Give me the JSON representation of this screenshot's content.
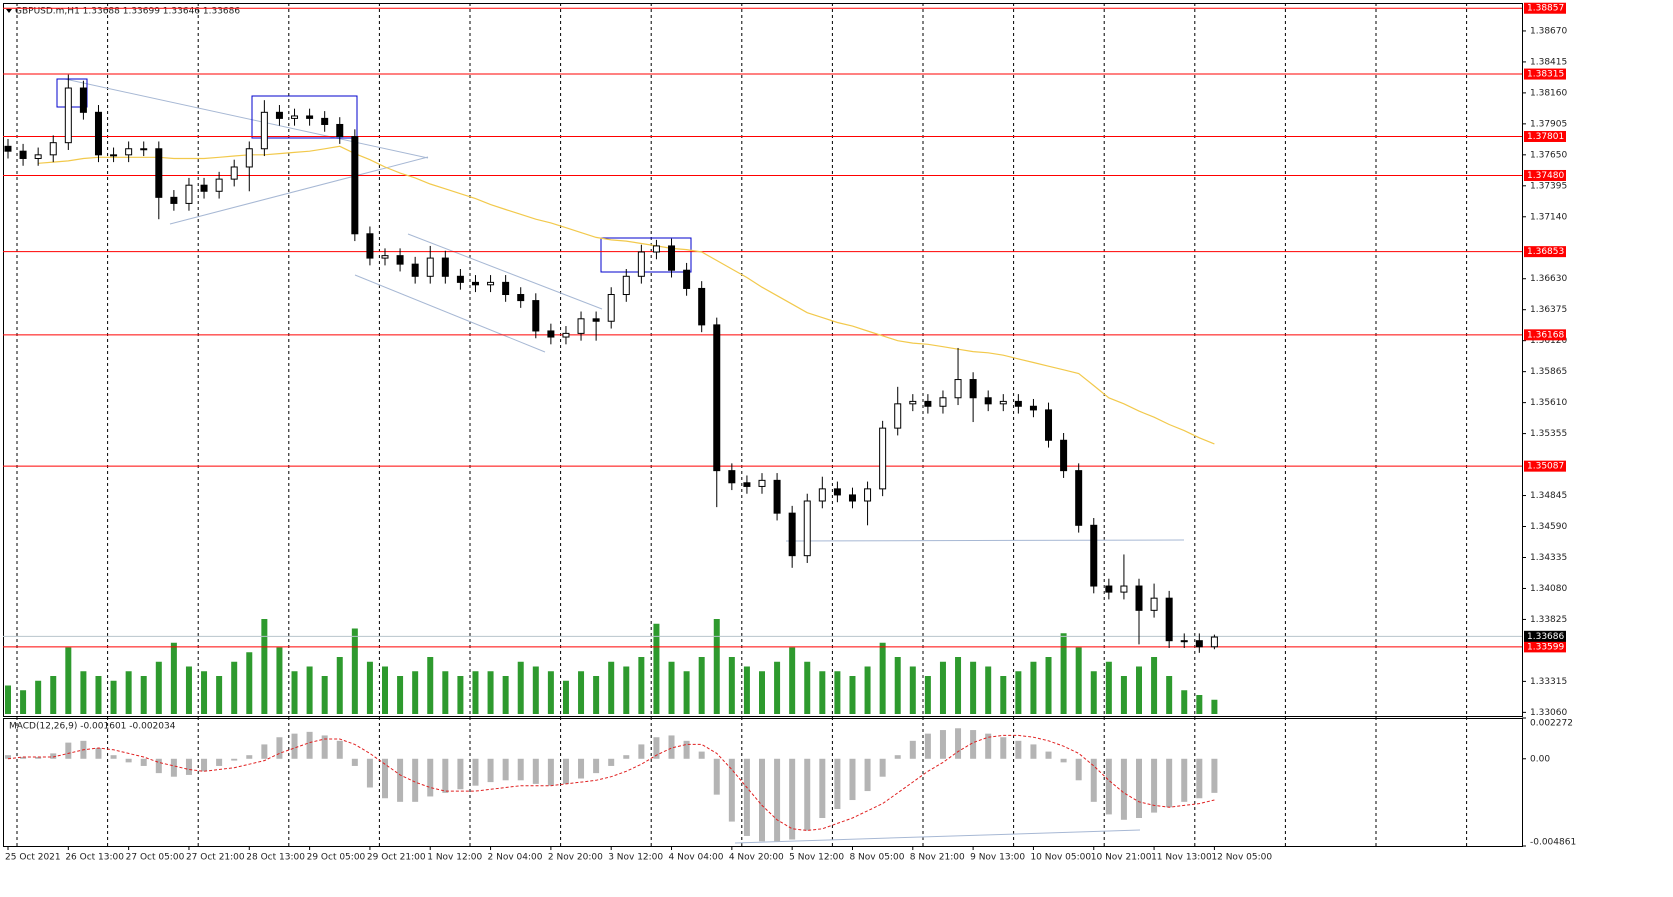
{
  "chart_data": {
    "type": "candlestick",
    "title": "GBPUSD.m,H1  1.33688 1.33699 1.33646 1.33686",
    "categories": [
      "25 Oct 2021",
      null,
      null,
      null,
      "26 Oct 13:00",
      null,
      null,
      null,
      "27 Oct 05:00",
      null,
      null,
      null,
      "27 Oct 21:00",
      null,
      null,
      null,
      "28 Oct 13:00",
      null,
      null,
      null,
      "29 Oct 05:00",
      null,
      null,
      null,
      "29 Oct 21:00",
      null,
      null,
      null,
      "1 Nov 12:00",
      null,
      null,
      null,
      "2 Nov 04:00",
      null,
      null,
      null,
      "2 Nov 20:00",
      null,
      null,
      null,
      "3 Nov 12:00",
      null,
      null,
      null,
      "4 Nov 04:00",
      null,
      null,
      null,
      "4 Nov 20:00",
      null,
      null,
      null,
      "5 Nov 12:00",
      null,
      null,
      null,
      "8 Nov 05:00",
      null,
      null,
      null,
      "8 Nov 21:00",
      null,
      null,
      null,
      "9 Nov 13:00",
      null,
      null,
      null,
      "10 Nov 05:00",
      null,
      null,
      null,
      "10 Nov 21:00",
      null,
      null,
      null,
      "11 Nov 13:00",
      null,
      null,
      null,
      "12 Nov 05:00"
    ],
    "color": "#000000",
    "open": [
      1.3772,
      1.3768,
      1.3762,
      1.3765,
      1.3775,
      1.382,
      1.38,
      1.3765,
      1.3765,
      1.377,
      1.377,
      1.373,
      1.3725,
      1.374,
      1.3735,
      1.3745,
      1.3755,
      1.377,
      1.38,
      1.3795,
      1.3797,
      1.3795,
      1.379,
      1.378,
      1.37,
      1.368,
      1.3682,
      1.3675,
      1.3665,
      1.368,
      1.3665,
      1.366,
      1.3658,
      1.366,
      1.365,
      1.3645,
      1.362,
      1.3615,
      1.3618,
      1.363,
      1.3628,
      1.365,
      1.3665,
      1.3685,
      1.369,
      1.367,
      1.3655,
      1.3625,
      1.3505,
      1.3495,
      1.3492,
      1.3497,
      1.347,
      1.3435,
      1.348,
      1.349,
      1.3485,
      1.348,
      1.349,
      1.354,
      1.356,
      1.3562,
      1.3558,
      1.3565,
      1.358,
      1.3565,
      1.356,
      1.3562,
      1.3558,
      1.3555,
      1.353,
      1.3505,
      1.346,
      1.341,
      1.3405,
      1.341,
      1.339,
      1.34,
      1.3365,
      1.3365,
      1.336
    ],
    "high": [
      1.3778,
      1.3774,
      1.3771,
      1.3781,
      1.3831,
      1.3826,
      1.3806,
      1.3771,
      1.3776,
      1.3776,
      1.3776,
      1.3736,
      1.3746,
      1.3746,
      1.3751,
      1.3761,
      1.3776,
      1.381,
      1.3806,
      1.3803,
      1.3803,
      1.3801,
      1.3796,
      1.3786,
      1.3706,
      1.3688,
      1.3688,
      1.3681,
      1.369,
      1.3686,
      1.3671,
      1.3666,
      1.3666,
      1.3666,
      1.3656,
      1.3651,
      1.3626,
      1.3624,
      1.3636,
      1.3636,
      1.3656,
      1.3671,
      1.3691,
      1.3695,
      1.3696,
      1.3676,
      1.3661,
      1.3631,
      1.3511,
      1.3501,
      1.3503,
      1.3503,
      1.3476,
      1.3486,
      1.35,
      1.3496,
      1.3491,
      1.3496,
      1.3546,
      1.3574,
      1.3568,
      1.3568,
      1.3571,
      1.3606,
      1.3586,
      1.3571,
      1.3568,
      1.3568,
      1.3564,
      1.3561,
      1.3536,
      1.3511,
      1.3466,
      1.3416,
      1.3436,
      1.3416,
      1.3412,
      1.3406,
      1.3371,
      1.3371,
      1.337
    ],
    "low": [
      1.3762,
      1.3756,
      1.3756,
      1.3759,
      1.3769,
      1.3794,
      1.3759,
      1.3759,
      1.3759,
      1.3764,
      1.3712,
      1.3719,
      1.3719,
      1.3729,
      1.3729,
      1.3739,
      1.3735,
      1.3764,
      1.3789,
      1.3789,
      1.3789,
      1.3784,
      1.3774,
      1.3694,
      1.3674,
      1.3674,
      1.3669,
      1.3659,
      1.3659,
      1.3659,
      1.3654,
      1.3652,
      1.3652,
      1.3644,
      1.3639,
      1.3614,
      1.3609,
      1.3609,
      1.3612,
      1.3612,
      1.3622,
      1.3644,
      1.3659,
      1.3679,
      1.3664,
      1.3649,
      1.3619,
      1.3475,
      1.3489,
      1.3486,
      1.3486,
      1.3464,
      1.3425,
      1.3429,
      1.3474,
      1.3479,
      1.3474,
      1.346,
      1.3484,
      1.3534,
      1.3554,
      1.3552,
      1.3552,
      1.3559,
      1.3545,
      1.3554,
      1.3554,
      1.3552,
      1.3549,
      1.3524,
      1.3499,
      1.3454,
      1.3404,
      1.3399,
      1.3399,
      1.3362,
      1.3384,
      1.3359,
      1.3359,
      1.3355,
      1.3358
    ],
    "close": [
      1.3768,
      1.3762,
      1.3765,
      1.3775,
      1.382,
      1.38,
      1.3765,
      1.3765,
      1.377,
      1.377,
      1.373,
      1.3725,
      1.374,
      1.3735,
      1.3745,
      1.3755,
      1.377,
      1.38,
      1.3795,
      1.3797,
      1.3795,
      1.379,
      1.378,
      1.37,
      1.368,
      1.3682,
      1.3675,
      1.3665,
      1.368,
      1.3665,
      1.366,
      1.3658,
      1.366,
      1.365,
      1.3645,
      1.362,
      1.3615,
      1.3618,
      1.363,
      1.3628,
      1.365,
      1.3665,
      1.3685,
      1.369,
      1.367,
      1.3655,
      1.3625,
      1.3505,
      1.3495,
      1.3492,
      1.3497,
      1.347,
      1.3435,
      1.348,
      1.349,
      1.3485,
      1.348,
      1.349,
      1.354,
      1.356,
      1.3562,
      1.3558,
      1.3565,
      1.358,
      1.3565,
      1.356,
      1.3562,
      1.3558,
      1.3555,
      1.353,
      1.3505,
      1.346,
      1.341,
      1.3405,
      1.341,
      1.339,
      1.34,
      1.3365,
      1.3365,
      1.336,
      1.3368
    ],
    "ylim": [
      1.3303,
      1.389
    ],
    "yticks": [
      {
        "value": 1.3867,
        "label": "1.38670"
      },
      1.38415,
      {
        "value": 1.3816,
        "label": "1.38160"
      },
      1.37905,
      {
        "value": 1.3765,
        "label": "1.37650"
      },
      1.37395,
      {
        "value": 1.3714,
        "label": "1.37140"
      },
      {
        "value": 1.3663,
        "label": "1.36630"
      },
      1.36375,
      {
        "value": 1.3612,
        "label": "1.36120"
      },
      1.35865,
      {
        "value": 1.3561,
        "label": "1.35610"
      },
      1.35355,
      1.34845,
      {
        "value": 1.3459,
        "label": "1.34590"
      },
      1.34335,
      {
        "value": 1.3408,
        "label": "1.34080"
      },
      1.33825,
      1.33315,
      {
        "value": 1.3306,
        "label": "1.33060"
      }
    ],
    "levels": [
      1.38857,
      1.38315,
      1.37801,
      {
        "value": 1.3748,
        "label": "1.37480"
      },
      1.36853,
      1.36168,
      1.35087,
      1.33599
    ],
    "level_color": "#ff0000",
    "current_price": 1.33686,
    "ma": {
      "color": "#f2c94c",
      "values": [
        null,
        null,
        1.3758,
        1.3759,
        1.376,
        1.3762,
        1.3763,
        1.3763,
        1.3763,
        1.3763,
        1.3763,
        1.3762,
        1.3762,
        1.3762,
        1.3763,
        1.3764,
        1.3765,
        1.3765,
        1.3766,
        1.3767,
        1.3768,
        1.377,
        1.3772,
        1.3766,
        1.3761,
        1.3755,
        1.375,
        1.3746,
        1.3741,
        1.3737,
        1.3733,
        1.3729,
        1.3724,
        1.372,
        1.3716,
        1.3712,
        1.3709,
        1.3705,
        1.3701,
        1.3697,
        1.3695,
        1.3694,
        1.3692,
        1.369,
        1.3688,
        1.3687,
        1.3685,
        1.3678,
        1.3671,
        1.3664,
        1.3656,
        1.3649,
        1.3642,
        1.3635,
        1.3631,
        1.3627,
        1.3624,
        1.362,
        1.3616,
        1.3612,
        1.361,
        1.3609,
        1.3607,
        1.3605,
        1.3603,
        1.3602,
        1.36,
        1.3597,
        1.3594,
        1.3591,
        1.3588,
        1.3585,
        1.3575,
        1.3565,
        1.356,
        1.3554,
        1.3549,
        1.3543,
        1.3538,
        1.3532,
        1.3527
      ]
    },
    "volume": {
      "color": "#2e9a2e",
      "values": [
        30,
        25,
        35,
        40,
        70,
        45,
        40,
        35,
        45,
        40,
        55,
        75,
        50,
        45,
        40,
        55,
        65,
        100,
        70,
        45,
        50,
        40,
        60,
        90,
        55,
        50,
        40,
        45,
        60,
        45,
        40,
        45,
        45,
        40,
        55,
        50,
        45,
        35,
        45,
        40,
        55,
        50,
        60,
        95,
        55,
        45,
        60,
        100,
        60,
        50,
        45,
        55,
        70,
        55,
        45,
        45,
        40,
        50,
        75,
        60,
        50,
        40,
        55,
        60,
        55,
        50,
        40,
        45,
        55,
        60,
        85,
        70,
        45,
        55,
        40,
        50,
        60,
        40,
        25,
        20,
        15
      ]
    },
    "macd": {
      "title": "MACD(12,26,9) -0.001601 -0.002034",
      "ylim": [
        -0.004861,
        0.002272
      ],
      "yticks": [
        0.002272,
        {
          "value": 0,
          "label": "0.00"
        },
        -0.004861
      ],
      "histogram": {
        "color": "#b4b4b4",
        "values": [
          0.0002,
          0.0001,
          0.0001,
          0.0003,
          0.0009,
          0.001,
          0.0006,
          0.0002,
          -0.0002,
          -0.0004,
          -0.0008,
          -0.001,
          -0.0009,
          -0.0007,
          -0.0004,
          -0.0001,
          0.0002,
          0.0008,
          0.0012,
          0.0014,
          0.0015,
          0.0013,
          0.001,
          -0.0004,
          -0.0016,
          -0.0022,
          -0.0024,
          -0.0024,
          -0.0021,
          -0.0019,
          -0.0017,
          -0.0015,
          -0.0013,
          -0.0012,
          -0.0012,
          -0.0014,
          -0.0015,
          -0.0014,
          -0.0011,
          -0.0008,
          -0.0004,
          0.0002,
          0.0008,
          0.0012,
          0.0013,
          0.001,
          0.0004,
          -0.002,
          -0.0035,
          -0.0043,
          -0.0046,
          -0.0046,
          -0.0045,
          -0.004,
          -0.0033,
          -0.0028,
          -0.0023,
          -0.0018,
          -0.001,
          0.0002,
          0.001,
          0.0014,
          0.0016,
          0.0017,
          0.0016,
          0.0014,
          0.0012,
          0.001,
          0.0008,
          0.0004,
          -0.0002,
          -0.0012,
          -0.0024,
          -0.0031,
          -0.0034,
          -0.0033,
          -0.003,
          -0.0027,
          -0.0024,
          -0.0022,
          -0.0019
        ]
      },
      "signal": {
        "color": "#e02020",
        "values": [
          0.0,
          0.0001,
          0.0001,
          0.0001,
          0.0003,
          0.0005,
          0.0006,
          0.0005,
          0.0003,
          0.0001,
          -0.0002,
          -0.0004,
          -0.0006,
          -0.0007,
          -0.0006,
          -0.0005,
          -0.0003,
          -0.0001,
          0.0003,
          0.0006,
          0.0009,
          0.0011,
          0.0011,
          0.0008,
          0.0003,
          -0.0003,
          -0.0009,
          -0.0013,
          -0.0016,
          -0.0018,
          -0.0018,
          -0.0018,
          -0.0017,
          -0.0016,
          -0.0015,
          -0.0015,
          -0.0015,
          -0.0014,
          -0.0013,
          -0.0012,
          -0.001,
          -0.0007,
          -0.0003,
          0.0002,
          0.0006,
          0.0008,
          0.0008,
          0.0003,
          -0.0006,
          -0.0016,
          -0.0026,
          -0.0034,
          -0.0039,
          -0.004,
          -0.0039,
          -0.0036,
          -0.0033,
          -0.0029,
          -0.0025,
          -0.0019,
          -0.0013,
          -0.0007,
          -0.0002,
          0.0004,
          0.0009,
          0.0012,
          0.0013,
          0.0013,
          0.0012,
          0.001,
          0.0007,
          0.0003,
          -0.0004,
          -0.0012,
          -0.0019,
          -0.0024,
          -0.0026,
          -0.0027,
          -0.0026,
          -0.0025,
          -0.0023
        ]
      }
    }
  }
}
